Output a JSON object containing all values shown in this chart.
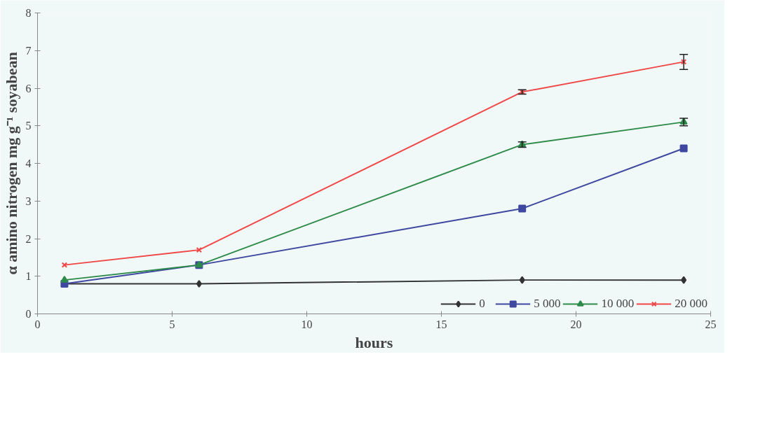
{
  "chart_data": {
    "type": "line",
    "xlabel": "hours",
    "ylabel": "α amino nitrogen mg g⁻¹ soyabean",
    "x": [
      1,
      6,
      18,
      24
    ],
    "series": [
      {
        "name": "0",
        "color": "#333333",
        "marker": "diamond",
        "values": [
          0.8,
          0.8,
          0.9,
          0.9
        ]
      },
      {
        "name": "5 000",
        "color": "#3f48a0",
        "marker": "square",
        "values": [
          0.8,
          1.3,
          2.8,
          4.4
        ]
      },
      {
        "name": "10 000",
        "color": "#2e8b4a",
        "marker": "triangle",
        "values": [
          0.9,
          1.3,
          4.5,
          5.1
        ],
        "errors": [
          null,
          null,
          0.07,
          0.1
        ]
      },
      {
        "name": "20 000",
        "color": "#f04848",
        "marker": "x",
        "values": [
          1.3,
          1.7,
          5.9,
          6.7
        ],
        "errors": [
          null,
          null,
          0.06,
          0.2
        ]
      }
    ],
    "xlim": [
      0,
      25
    ],
    "xticks": [
      0,
      5,
      10,
      15,
      20,
      25
    ],
    "ylim": [
      0,
      8
    ],
    "yticks": [
      0,
      1,
      2,
      3,
      4,
      5,
      6,
      7,
      8
    ],
    "grid": false,
    "legend": "bottom",
    "line_style": "solid"
  }
}
